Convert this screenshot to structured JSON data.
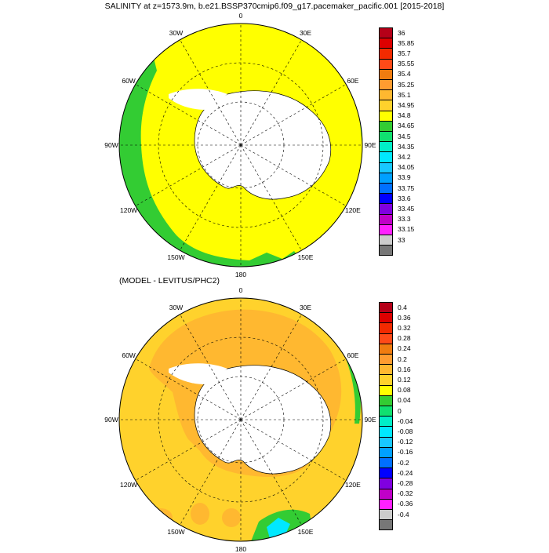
{
  "top_panel": {
    "title": "SALINITY at z=1573.9m, b.e21.BSSP370cmip6.f09_g17.pacemaker_pacific.001 [2015-2018]",
    "lon_labels": {
      "0": "0",
      "30E": "30E",
      "60E": "60E",
      "90E": "90E",
      "120E": "120E",
      "150E": "150E",
      "180": "180",
      "150W": "150W",
      "120W": "120W",
      "90W": "90W",
      "60W": "60W",
      "30W": "30W"
    },
    "colorbar": {
      "labels": [
        "36",
        "35.85",
        "35.7",
        "35.55",
        "35.4",
        "35.25",
        "35.1",
        "34.95",
        "34.8",
        "34.65",
        "34.5",
        "34.35",
        "34.2",
        "34.05",
        "33.9",
        "33.75",
        "33.6",
        "33.45",
        "33.3",
        "33.15",
        "33"
      ],
      "colors": [
        "#b50018",
        "#dd0000",
        "#f22a00",
        "#ff4a18",
        "#f07c10",
        "#ff9c30",
        "#ffb830",
        "#ffd22c",
        "#ffff00",
        "#33cc33",
        "#10e070",
        "#00eec8",
        "#00e8ff",
        "#18c8ff",
        "#00a0ff",
        "#0070ff",
        "#0000ff",
        "#8000e0",
        "#c000c8",
        "#ff20ff",
        "#cccccc",
        "#777777"
      ]
    }
  },
  "bottom_panel": {
    "title": "(MODEL - LEVITUS/PHC2)",
    "lon_labels": {
      "0": "0",
      "30E": "30E",
      "60E": "60E",
      "90E": "90E",
      "120E": "120E",
      "150E": "150E",
      "180": "180",
      "150W": "150W",
      "120W": "120W",
      "90W": "90W",
      "60W": "60W",
      "30W": "30W"
    },
    "colorbar": {
      "labels": [
        "0.4",
        "0.36",
        "0.32",
        "0.28",
        "0.24",
        "0.2",
        "0.16",
        "0.12",
        "0.08",
        "0.04",
        "0",
        "-0.04",
        "-0.08",
        "-0.12",
        "-0.16",
        "-0.2",
        "-0.24",
        "-0.28",
        "-0.32",
        "-0.36",
        "-0.4"
      ],
      "colors": [
        "#b50018",
        "#dd0000",
        "#f22a00",
        "#ff4a18",
        "#f07c10",
        "#ff9c30",
        "#ffb830",
        "#ffd22c",
        "#ffff00",
        "#33cc33",
        "#10e070",
        "#00eec8",
        "#00e8ff",
        "#18c8ff",
        "#00a0ff",
        "#0070ff",
        "#0000ff",
        "#8000e0",
        "#c000c8",
        "#ff20ff",
        "#cccccc",
        "#777777"
      ]
    }
  },
  "map_colors": {
    "yellow": "#ffff00",
    "green": "#33cc33",
    "light_orange": "#ffd22c",
    "orange": "#ffb830",
    "dark_orange": "#f2a040",
    "land": "#ffffff"
  }
}
